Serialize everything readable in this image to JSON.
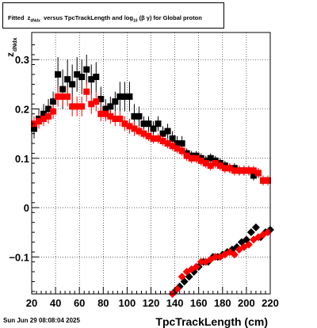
{
  "title": {
    "prefix": "Fitted",
    "z_sym": "z",
    "z_sub": "dNdx",
    "middle": "versus TpcTrackLength and log",
    "log_sub": "10",
    "suffix": "(β  γ) for Global proton"
  },
  "footer_text": "Sun Jun 29 08:08:04 2025",
  "chart_data": {
    "type": "scatter",
    "xlabel": "TpcTrackLength (cm)",
    "ylabel": "z",
    "ylabel_sub": "dNdx",
    "xlim": [
      20,
      220
    ],
    "ylim": [
      -0.175,
      0.355
    ],
    "grid": true,
    "x_ticks": [
      20,
      40,
      60,
      80,
      100,
      120,
      140,
      160,
      180,
      200,
      220
    ],
    "y_ticks": [
      {
        "value": 0.3,
        "label": "0.3"
      },
      {
        "value": 0.2,
        "label": "0.2"
      },
      {
        "value": 0.1,
        "label": "0.1"
      },
      {
        "value": 0,
        "label": "0"
      },
      {
        "value": -0.1,
        "label": "−0.1"
      }
    ],
    "colors": {
      "black_series": "#000000",
      "red_series": "#ff0000"
    },
    "series": [
      {
        "marker": "square",
        "color": "#000000",
        "points": [
          [
            22,
            0.16,
            0.02
          ],
          [
            26,
            0.18,
            0.02
          ],
          [
            30,
            0.19,
            0.02
          ],
          [
            34,
            0.2,
            0.02
          ],
          [
            38,
            0.215,
            0.02
          ],
          [
            42,
            0.27,
            0.035
          ],
          [
            46,
            0.24,
            0.04
          ],
          [
            50,
            0.26,
            0.04
          ],
          [
            54,
            0.25,
            0.04
          ],
          [
            58,
            0.27,
            0.035
          ],
          [
            62,
            0.265,
            0.035
          ],
          [
            66,
            0.28,
            0.03
          ],
          [
            70,
            0.26,
            0.03
          ],
          [
            74,
            0.265,
            0.03
          ],
          [
            78,
            0.22,
            0.025
          ],
          [
            82,
            0.2,
            0.02
          ],
          [
            86,
            0.205,
            0.02
          ],
          [
            90,
            0.215,
            0.02
          ],
          [
            94,
            0.225,
            0.03
          ],
          [
            98,
            0.225,
            0.03
          ],
          [
            102,
            0.225,
            0.03
          ],
          [
            106,
            0.185,
            0.025
          ],
          [
            110,
            0.185,
            0.02
          ],
          [
            114,
            0.17,
            0.015
          ],
          [
            118,
            0.17,
            0.015
          ],
          [
            122,
            0.16,
            0.015
          ],
          [
            126,
            0.17,
            0.015
          ],
          [
            130,
            0.15,
            0.015
          ],
          [
            134,
            0.155,
            0.015
          ],
          [
            138,
            0.14,
            0.015
          ],
          [
            142,
            0.13,
            0.015
          ],
          [
            146,
            0.13,
            0.015
          ],
          [
            150,
            0.11,
            0.01
          ],
          [
            154,
            0.105,
            0.01
          ],
          [
            158,
            0.105,
            0.01
          ],
          [
            162,
            0.1,
            0.01
          ],
          [
            166,
            0.095,
            0.01
          ],
          [
            170,
            0.1,
            0.01
          ],
          [
            174,
            0.095,
            0.01
          ],
          [
            178,
            0.09,
            0.01
          ],
          [
            182,
            0.085,
            0.01
          ],
          [
            186,
            0.08,
            0.01
          ],
          [
            190,
            0.08,
            0.01
          ],
          [
            194,
            0.075,
            0.01
          ],
          [
            198,
            0.075,
            0.01
          ],
          [
            202,
            0.075,
            0.01
          ],
          [
            206,
            0.065,
            0.01
          ],
          [
            210,
            0.07,
            0.01
          ],
          [
            214,
            0.055,
            0.01
          ],
          [
            218,
            0.055,
            0.01
          ]
        ]
      },
      {
        "marker": "square",
        "color": "#ff0000",
        "points": [
          [
            22,
            0.17,
            0.015
          ],
          [
            26,
            0.175,
            0.015
          ],
          [
            30,
            0.18,
            0.015
          ],
          [
            34,
            0.185,
            0.015
          ],
          [
            38,
            0.195,
            0.015
          ],
          [
            42,
            0.225,
            0.02
          ],
          [
            46,
            0.225,
            0.02
          ],
          [
            50,
            0.225,
            0.02
          ],
          [
            54,
            0.205,
            0.02
          ],
          [
            58,
            0.205,
            0.02
          ],
          [
            62,
            0.205,
            0.02
          ],
          [
            66,
            0.235,
            0.02
          ],
          [
            70,
            0.21,
            0.02
          ],
          [
            74,
            0.215,
            0.02
          ],
          [
            78,
            0.19,
            0.015
          ],
          [
            82,
            0.19,
            0.015
          ],
          [
            86,
            0.185,
            0.015
          ],
          [
            90,
            0.18,
            0.015
          ],
          [
            94,
            0.18,
            0.015
          ],
          [
            98,
            0.17,
            0.015
          ],
          [
            102,
            0.165,
            0.015
          ],
          [
            106,
            0.16,
            0.015
          ],
          [
            110,
            0.155,
            0.01
          ],
          [
            114,
            0.15,
            0.01
          ],
          [
            118,
            0.145,
            0.01
          ],
          [
            122,
            0.14,
            0.01
          ],
          [
            126,
            0.14,
            0.01
          ],
          [
            130,
            0.135,
            0.01
          ],
          [
            134,
            0.13,
            0.01
          ],
          [
            138,
            0.125,
            0.01
          ],
          [
            142,
            0.12,
            0.01
          ],
          [
            146,
            0.115,
            0.01
          ],
          [
            150,
            0.105,
            0.01
          ],
          [
            154,
            0.1,
            0.01
          ],
          [
            158,
            0.1,
            0.01
          ],
          [
            162,
            0.095,
            0.01
          ],
          [
            166,
            0.09,
            0.01
          ],
          [
            170,
            0.085,
            0.01
          ],
          [
            174,
            0.09,
            0.01
          ],
          [
            178,
            0.085,
            0.01
          ],
          [
            182,
            0.08,
            0.01
          ],
          [
            186,
            0.08,
            0.01
          ],
          [
            190,
            0.075,
            0.01
          ],
          [
            194,
            0.075,
            0.01
          ],
          [
            198,
            0.075,
            0.01
          ],
          [
            202,
            0.075,
            0.01
          ],
          [
            206,
            0.075,
            0.01
          ],
          [
            210,
            0.07,
            0.01
          ],
          [
            214,
            0.055,
            0.01
          ],
          [
            218,
            0.055,
            0.01
          ]
        ]
      },
      {
        "marker": "diamond",
        "color": "#000000",
        "points": [
          [
            140,
            -0.17
          ],
          [
            144,
            -0.16
          ],
          [
            148,
            -0.15
          ],
          [
            152,
            -0.14
          ],
          [
            156,
            -0.13
          ],
          [
            160,
            -0.12
          ],
          [
            164,
            -0.11
          ],
          [
            168,
            -0.11
          ],
          [
            172,
            -0.1
          ],
          [
            176,
            -0.1
          ],
          [
            180,
            -0.095
          ],
          [
            184,
            -0.09
          ],
          [
            188,
            -0.085
          ],
          [
            192,
            -0.08
          ],
          [
            196,
            -0.07
          ],
          [
            200,
            -0.065
          ],
          [
            204,
            -0.05
          ],
          [
            208,
            -0.04
          ],
          [
            212,
            -0.06
          ],
          [
            216,
            -0.05
          ],
          [
            220,
            -0.045
          ]
        ]
      },
      {
        "marker": "diamond",
        "color": "#ff0000",
        "points": [
          [
            138,
            -0.175
          ],
          [
            142,
            -0.165
          ],
          [
            146,
            -0.14
          ],
          [
            150,
            -0.13
          ],
          [
            154,
            -0.125
          ],
          [
            158,
            -0.12
          ],
          [
            162,
            -0.11
          ],
          [
            166,
            -0.11
          ],
          [
            170,
            -0.105
          ],
          [
            174,
            -0.1
          ],
          [
            178,
            -0.1
          ],
          [
            182,
            -0.095
          ],
          [
            186,
            -0.09
          ],
          [
            190,
            -0.095
          ],
          [
            194,
            -0.085
          ],
          [
            198,
            -0.08
          ],
          [
            202,
            -0.075
          ],
          [
            206,
            -0.065
          ],
          [
            210,
            -0.06
          ],
          [
            214,
            -0.055
          ],
          [
            218,
            -0.05
          ]
        ]
      }
    ]
  }
}
